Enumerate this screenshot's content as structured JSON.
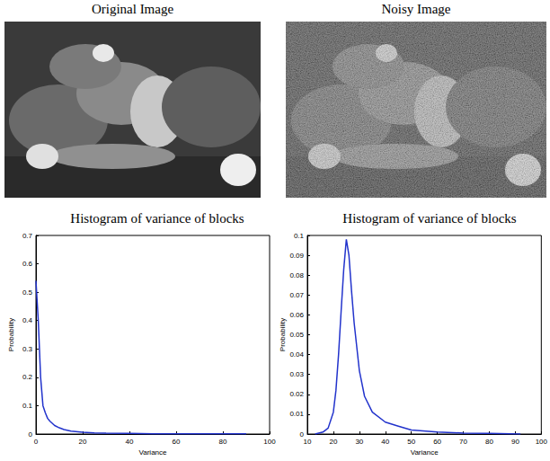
{
  "images": [
    {
      "title": "Original Image"
    },
    {
      "title": "Noisy Image"
    }
  ],
  "chart_data": [
    {
      "type": "line",
      "title": "Histogram of variance of blocks",
      "xlabel": "Variance",
      "ylabel": "Probability",
      "x": [
        0,
        1,
        2,
        3,
        4,
        5,
        6,
        8,
        10,
        12,
        15,
        20,
        25,
        30,
        40,
        50,
        60,
        70,
        80,
        90
      ],
      "values": [
        0.54,
        0.4,
        0.2,
        0.1,
        0.075,
        0.055,
        0.045,
        0.03,
        0.022,
        0.016,
        0.01,
        0.006,
        0.004,
        0.003,
        0.002,
        0.001,
        0.001,
        0.0005,
        0.0005,
        0.0005
      ],
      "color": "#2233cc",
      "xlim": [
        0,
        100
      ],
      "xticks": [
        0,
        20,
        40,
        60,
        80,
        100
      ],
      "ylim": [
        0,
        0.7
      ],
      "yticks": [
        0,
        0.1,
        0.2,
        0.3,
        0.4,
        0.5,
        0.6,
        0.7
      ],
      "grid": false
    },
    {
      "type": "line",
      "title": "Histogram of variance of blocks",
      "xlabel": "Variance",
      "ylabel": "Probability",
      "x": [
        13,
        16,
        18,
        20,
        21,
        22,
        23,
        24,
        25,
        26,
        27,
        28,
        30,
        32,
        35,
        40,
        45,
        50,
        60,
        70,
        80,
        92
      ],
      "values": [
        0,
        0.001,
        0.003,
        0.011,
        0.022,
        0.04,
        0.062,
        0.083,
        0.098,
        0.09,
        0.072,
        0.056,
        0.032,
        0.019,
        0.011,
        0.006,
        0.004,
        0.002,
        0.001,
        0.0005,
        0.0003,
        0
      ],
      "color": "#2233cc",
      "xlim": [
        10,
        100
      ],
      "xticks": [
        10,
        20,
        30,
        40,
        50,
        60,
        70,
        80,
        90,
        100
      ],
      "ylim": [
        0,
        0.1
      ],
      "yticks": [
        0,
        0.01,
        0.02,
        0.03,
        0.04,
        0.05,
        0.06,
        0.07,
        0.08,
        0.09,
        0.1
      ],
      "grid": false
    }
  ]
}
